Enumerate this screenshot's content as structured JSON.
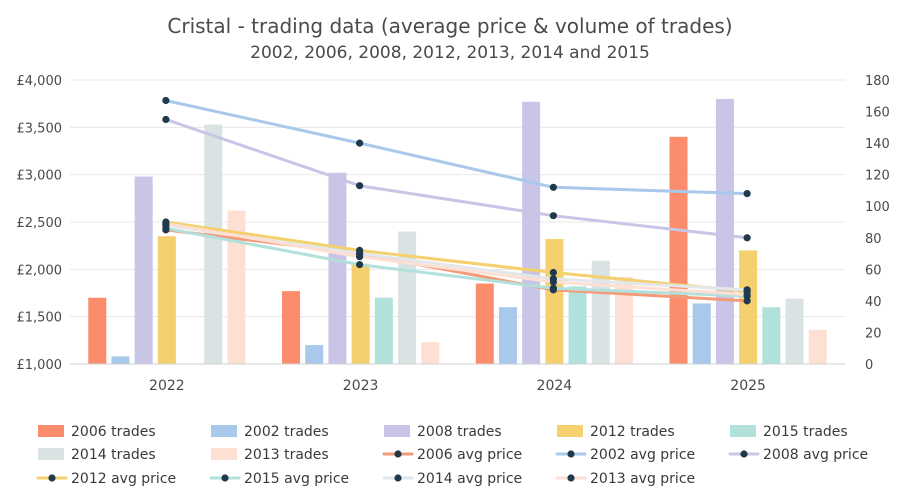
{
  "chart_data": {
    "type": "bar",
    "title": "Cristal - trading data (average price & volume of trades)",
    "subtitle": "2002, 2006, 2008, 2012, 2013, 2014 and 2015",
    "categories": [
      "2022",
      "2023",
      "2024",
      "2025"
    ],
    "left_axis": {
      "label": "",
      "ylim": [
        1000,
        4000
      ],
      "ticks": [
        {
          "value": 1000,
          "label": "£1,000"
        },
        {
          "value": 1500,
          "label": "£1,500"
        },
        {
          "value": 2000,
          "label": "£2,000"
        },
        {
          "value": 2500,
          "label": "£2,500"
        },
        {
          "value": 3000,
          "label": "£3,000"
        },
        {
          "value": 3500,
          "label": "£3,500"
        },
        {
          "value": 4000,
          "label": "£4,000"
        }
      ]
    },
    "right_axis": {
      "label": "",
      "ylim": [
        0,
        180
      ],
      "ticks": [
        {
          "value": 0,
          "label": "0"
        },
        {
          "value": 20,
          "label": "20"
        },
        {
          "value": 40,
          "label": "40"
        },
        {
          "value": 60,
          "label": "60"
        },
        {
          "value": 80,
          "label": "80"
        },
        {
          "value": 100,
          "label": "100"
        },
        {
          "value": 120,
          "label": "120"
        },
        {
          "value": 140,
          "label": "140"
        },
        {
          "value": 160,
          "label": "160"
        },
        {
          "value": 180,
          "label": "180"
        }
      ]
    },
    "bar_series": [
      {
        "name": "2006 trades",
        "color": "#fb8c6c",
        "values": [
          1700,
          1770,
          1850,
          3400
        ]
      },
      {
        "name": "2002 trades",
        "color": "#a9c9ec",
        "values": [
          1080,
          1200,
          1600,
          1640
        ]
      },
      {
        "name": "2008 trades",
        "color": "#c8c5e6",
        "values": [
          2980,
          3020,
          3770,
          3800
        ]
      },
      {
        "name": "2012 trades",
        "color": "#f4d06f",
        "values": [
          2350,
          2060,
          2320,
          2200
        ]
      },
      {
        "name": "2015 trades",
        "color": "#b2e0da",
        "values": [
          null,
          1700,
          1820,
          1600
        ]
      },
      {
        "name": "2014 trades",
        "color": "#d9e3e3",
        "values": [
          3530,
          2400,
          2090,
          1690
        ]
      },
      {
        "name": "2013 trades",
        "color": "#fde0d3",
        "values": [
          2620,
          1230,
          1920,
          1360
        ]
      }
    ],
    "line_series": [
      {
        "name": "2006 avg price",
        "color": "#f49a78",
        "values": [
          85,
          70,
          47,
          40
        ]
      },
      {
        "name": "2002 avg price",
        "color": "#a9c9ec",
        "values": [
          167,
          140,
          112,
          108
        ]
      },
      {
        "name": "2008 avg price",
        "color": "#c8c5e6",
        "values": [
          155,
          113,
          94,
          80
        ]
      },
      {
        "name": "2012 avg price",
        "color": "#f4d06f",
        "values": [
          90,
          72,
          58,
          46
        ]
      },
      {
        "name": "2015 avg price",
        "color": "#b2e0da",
        "values": [
          86,
          63,
          48,
          43
        ]
      },
      {
        "name": "2014 avg price",
        "color": "#e3e7ea",
        "values": [
          88,
          70,
          54,
          47
        ]
      },
      {
        "name": "2013 avg price",
        "color": "#fde0d3",
        "values": [
          89,
          68,
          52,
          44
        ]
      }
    ],
    "legend": [
      {
        "label": "2006 trades",
        "kind": "bar",
        "color": "#fb8c6c"
      },
      {
        "label": "2002 trades",
        "kind": "bar",
        "color": "#a9c9ec"
      },
      {
        "label": "2008 trades",
        "kind": "bar",
        "color": "#c8c5e6"
      },
      {
        "label": "2012 trades",
        "kind": "bar",
        "color": "#f4d06f"
      },
      {
        "label": "2015 trades",
        "kind": "bar",
        "color": "#b2e0da"
      },
      {
        "label": "2014 trades",
        "kind": "bar",
        "color": "#d9e3e3"
      },
      {
        "label": "2013 trades",
        "kind": "bar",
        "color": "#fde0d3"
      },
      {
        "label": "2006 avg price",
        "kind": "line",
        "color": "#f49a78"
      },
      {
        "label": "2002 avg price",
        "kind": "line",
        "color": "#a9c9ec"
      },
      {
        "label": "2008 avg price",
        "kind": "line",
        "color": "#c8c5e6"
      },
      {
        "label": "2012 avg price",
        "kind": "line",
        "color": "#f4d06f"
      },
      {
        "label": "2015 avg price",
        "kind": "line",
        "color": "#b2e0da"
      },
      {
        "label": "2014 avg price",
        "kind": "line",
        "color": "#e3e7ea"
      },
      {
        "label": "2013 avg price",
        "kind": "line",
        "color": "#fde0d3"
      }
    ],
    "marker_color": "#1f3a4d",
    "gridline_color": "#e8e8e8",
    "grid": true,
    "legend_position": "bottom"
  }
}
